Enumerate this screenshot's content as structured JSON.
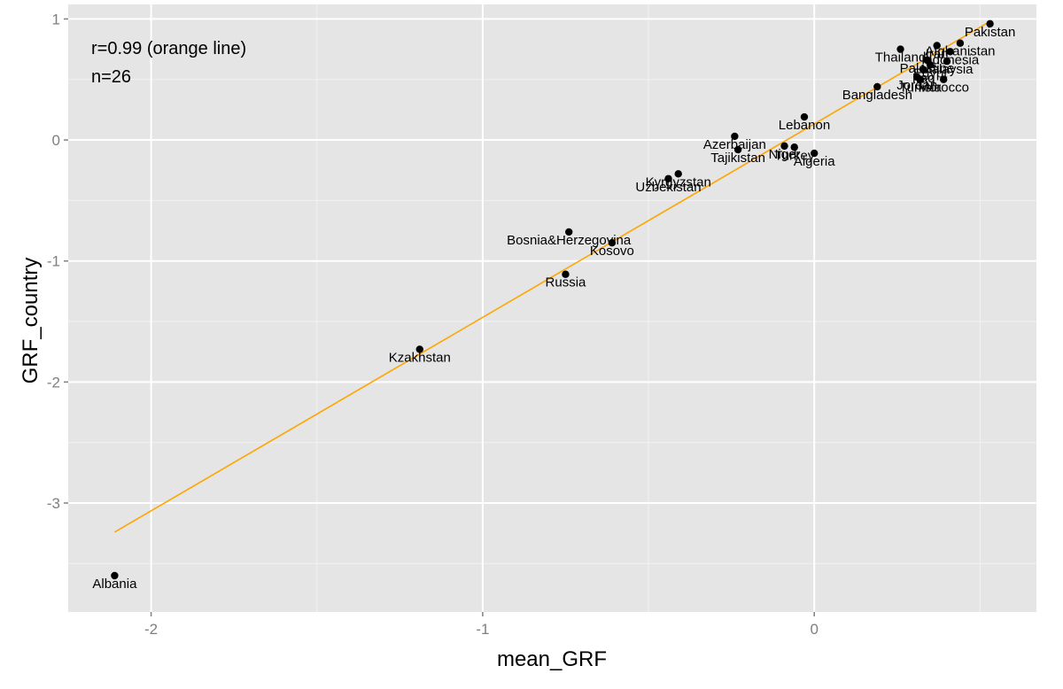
{
  "chart_data": {
    "type": "scatter",
    "title": "",
    "xlabel": "mean_GRF",
    "ylabel": "GRF_country",
    "xlim": [
      -2.25,
      0.67
    ],
    "ylim": [
      -3.9,
      1.12
    ],
    "x_ticks": [
      {
        "value": -2,
        "label": "-2"
      },
      {
        "value": -1,
        "label": "-1"
      },
      {
        "value": 0,
        "label": "0"
      }
    ],
    "y_ticks": [
      {
        "value": 1,
        "label": "1"
      },
      {
        "value": 0,
        "label": "0"
      },
      {
        "value": -1,
        "label": "-1"
      },
      {
        "value": -2,
        "label": "-2"
      },
      {
        "value": -3,
        "label": "-3"
      }
    ],
    "grid": true,
    "annotations": [
      "r=0.99 (orange line)",
      "n=26"
    ],
    "fit_line": {
      "color": "#FFA500",
      "x": [
        -2.11,
        0.53
      ],
      "y": [
        -3.24,
        0.98
      ]
    },
    "points": [
      {
        "label": "Albania",
        "x": -2.11,
        "y": -3.6
      },
      {
        "label": "Kzakhstan",
        "x": -1.19,
        "y": -1.73
      },
      {
        "label": "Russia",
        "x": -0.75,
        "y": -1.11
      },
      {
        "label": "Bosnia&Herzegovina",
        "x": -0.74,
        "y": -0.76
      },
      {
        "label": "Kosovo",
        "x": -0.61,
        "y": -0.85
      },
      {
        "label": "Kyrgyzstan",
        "x": -0.41,
        "y": -0.28
      },
      {
        "label": "Uzbekistan",
        "x": -0.44,
        "y": -0.32
      },
      {
        "label": "Azerbaijan",
        "x": -0.24,
        "y": 0.03
      },
      {
        "label": "Tajikistan",
        "x": -0.23,
        "y": -0.08
      },
      {
        "label": "Niger",
        "x": -0.09,
        "y": -0.05
      },
      {
        "label": "Turkey",
        "x": -0.06,
        "y": -0.06
      },
      {
        "label": "Algeria",
        "x": 0.0,
        "y": -0.11
      },
      {
        "label": "Lebanon",
        "x": -0.03,
        "y": 0.19
      },
      {
        "label": "Bangladesh",
        "x": 0.19,
        "y": 0.44
      },
      {
        "label": "Thailand",
        "x": 0.26,
        "y": 0.75
      },
      {
        "label": "Palestine",
        "x": 0.34,
        "y": 0.66
      },
      {
        "label": "Jordan",
        "x": 0.31,
        "y": 0.52
      },
      {
        "label": "Tunisia",
        "x": 0.32,
        "y": 0.5
      },
      {
        "label": "Iraq",
        "x": 0.33,
        "y": 0.58
      },
      {
        "label": "Egypt",
        "x": 0.35,
        "y": 0.62
      },
      {
        "label": "Morocco",
        "x": 0.39,
        "y": 0.5
      },
      {
        "label": "Malaysia",
        "x": 0.4,
        "y": 0.65
      },
      {
        "label": "Indonesia",
        "x": 0.41,
        "y": 0.73
      },
      {
        "label": "Iran",
        "x": 0.37,
        "y": 0.78
      },
      {
        "label": "Afghanistan",
        "x": 0.44,
        "y": 0.8
      },
      {
        "label": "Pakistan",
        "x": 0.53,
        "y": 0.96
      }
    ],
    "colors": {
      "panel": "#E5E5E5",
      "grid_major": "#FFFFFF",
      "grid_minor": "#F2F2F2",
      "point": "#000000",
      "tick_text": "#7F7F7F"
    }
  }
}
